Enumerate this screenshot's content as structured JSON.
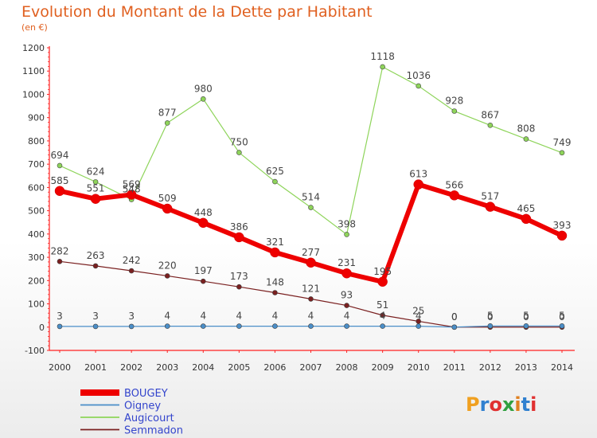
{
  "header": {
    "title": "Evolution du Montant de la Dette par Habitant",
    "subtitle": "(en €)"
  },
  "brand": {
    "logo": "Proxiti",
    "letter_colors": [
      "#f0a020",
      "#3080d0",
      "#e03030",
      "#30a040",
      "#e08020",
      "#3080d0",
      "#e03030"
    ]
  },
  "chart_data": {
    "type": "line",
    "x": [
      2000,
      2001,
      2002,
      2003,
      2004,
      2005,
      2006,
      2007,
      2008,
      2009,
      2010,
      2011,
      2012,
      2013,
      2014
    ],
    "ylim": [
      -100,
      1200
    ],
    "yticks": [
      -100,
      0,
      100,
      200,
      300,
      400,
      500,
      600,
      700,
      800,
      900,
      1000,
      1100,
      1200
    ],
    "grid": false,
    "legend_position": "bottom-left",
    "series": [
      {
        "name": "BOUGEY",
        "color": "#ee0000",
        "values": [
          585,
          551,
          569,
          509,
          448,
          386,
          321,
          277,
          231,
          195,
          613,
          566,
          517,
          465,
          393
        ],
        "labels": [
          "585",
          "551",
          "569",
          "509",
          "448",
          "386",
          "321",
          "277",
          "231",
          "195",
          "613",
          "566",
          "517",
          "465",
          "393"
        ]
      },
      {
        "name": "Oigney",
        "color": "#4a8ec8",
        "values": [
          3,
          3,
          3,
          4,
          4,
          4,
          4,
          4,
          4,
          4,
          4,
          0,
          5,
          5,
          5
        ],
        "labels": [
          "3",
          "3",
          "3",
          "4",
          "4",
          "4",
          "4",
          "4",
          "4",
          "4",
          "4",
          "0",
          "5",
          "5",
          "5"
        ]
      },
      {
        "name": "Augicourt",
        "color": "#8ed45a",
        "values": [
          694,
          624,
          548,
          877,
          980,
          750,
          625,
          514,
          398,
          1118,
          1036,
          928,
          867,
          808,
          749
        ],
        "labels": [
          "694",
          "624",
          "548",
          "877",
          "980",
          "750",
          "625",
          "514",
          "398",
          "1118",
          "1036",
          "928",
          "867",
          "808",
          "749"
        ]
      },
      {
        "name": "Semmadon",
        "color": "#7a2020",
        "values": [
          282,
          263,
          242,
          220,
          197,
          173,
          148,
          121,
          93,
          51,
          25,
          0,
          0,
          0,
          0
        ],
        "labels": [
          "282",
          "263",
          "242",
          "220",
          "197",
          "173",
          "148",
          "121",
          "93",
          "51",
          "25",
          "0",
          "0",
          "0",
          "0"
        ]
      }
    ]
  }
}
